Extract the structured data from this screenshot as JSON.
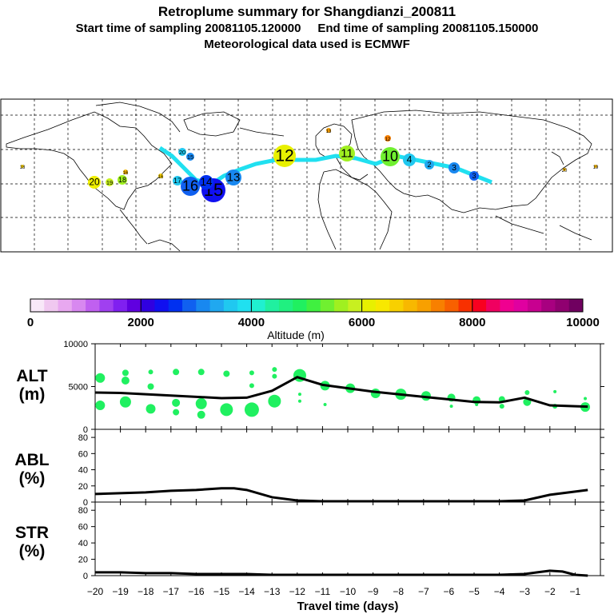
{
  "title": "Retroplume summary for Shangdianzi_200811",
  "subtitle_start": "Start time of sampling 20081105.120000",
  "subtitle_end": "End time of sampling 20081105.150000",
  "subtitle_met": "Meteorological data used is ECMWF",
  "colorbar": {
    "label": "Altitude (m)",
    "ticks": [
      "0",
      "2000",
      "4000",
      "6000",
      "8000",
      "10000"
    ],
    "colors": [
      "#f8e8f8",
      "#f0c8f0",
      "#e8a8f0",
      "#d888f0",
      "#c060f0",
      "#a040f0",
      "#8020f0",
      "#6000e0",
      "#3000e0",
      "#1010f0",
      "#0030f0",
      "#1060f0",
      "#1888f0",
      "#20a8f0",
      "#20c8f0",
      "#20e0f0",
      "#20f0d0",
      "#20f0a0",
      "#20f080",
      "#20f060",
      "#40f040",
      "#70f030",
      "#a0f020",
      "#c8f020",
      "#e8f000",
      "#f8e800",
      "#f8d000",
      "#f8b800",
      "#f8a000",
      "#f88000",
      "#f86000",
      "#f83000",
      "#f80020",
      "#f00060",
      "#f00090",
      "#e000a0",
      "#c80090",
      "#a80080",
      "#900070",
      "#700060"
    ]
  },
  "chart_data": [
    {
      "type": "line",
      "panel": "ALT",
      "ylabel_line1": "ALT",
      "ylabel_line2": "(m)",
      "ylim": [
        0,
        10000
      ],
      "yticks": [
        "10000",
        "5000",
        "0"
      ],
      "x": [
        -20,
        -19,
        -18,
        -17,
        -16,
        -15,
        -14,
        -13,
        -12,
        -11,
        -10,
        -9,
        -8,
        -7,
        -6,
        -5,
        -4,
        -3,
        -2,
        -1,
        -0.5
      ],
      "values": [
        4300,
        4250,
        4100,
        3950,
        3800,
        3650,
        3700,
        4500,
        6100,
        5200,
        4800,
        4400,
        4100,
        3800,
        3500,
        3200,
        3150,
        3700,
        2800,
        2700,
        2650
      ],
      "scatter": [
        {
          "x": -19.8,
          "y": 6000,
          "r": 6
        },
        {
          "x": -19.8,
          "y": 2800,
          "r": 6
        },
        {
          "x": -18.8,
          "y": 6600,
          "r": 4
        },
        {
          "x": -18.8,
          "y": 5700,
          "r": 5
        },
        {
          "x": -18.8,
          "y": 3200,
          "r": 7
        },
        {
          "x": -17.8,
          "y": 6700,
          "r": 3
        },
        {
          "x": -17.8,
          "y": 5000,
          "r": 4
        },
        {
          "x": -17.8,
          "y": 2400,
          "r": 6
        },
        {
          "x": -16.8,
          "y": 6700,
          "r": 4
        },
        {
          "x": -16.8,
          "y": 3100,
          "r": 5
        },
        {
          "x": -16.8,
          "y": 2000,
          "r": 4
        },
        {
          "x": -15.8,
          "y": 6700,
          "r": 4
        },
        {
          "x": -15.8,
          "y": 3000,
          "r": 7
        },
        {
          "x": -15.8,
          "y": 1700,
          "r": 5
        },
        {
          "x": -14.8,
          "y": 6500,
          "r": 4
        },
        {
          "x": -14.8,
          "y": 2300,
          "r": 8
        },
        {
          "x": -13.8,
          "y": 6600,
          "r": 3
        },
        {
          "x": -13.8,
          "y": 5100,
          "r": 3
        },
        {
          "x": -13.8,
          "y": 2300,
          "r": 9
        },
        {
          "x": -12.9,
          "y": 7000,
          "r": 3
        },
        {
          "x": -12.9,
          "y": 6200,
          "r": 3
        },
        {
          "x": -12.9,
          "y": 3300,
          "r": 8
        },
        {
          "x": -11.9,
          "y": 6300,
          "r": 8
        },
        {
          "x": -11.9,
          "y": 4100,
          "r": 2
        },
        {
          "x": -11.9,
          "y": 3300,
          "r": 2
        },
        {
          "x": -10.9,
          "y": 5100,
          "r": 6
        },
        {
          "x": -10.9,
          "y": 2900,
          "r": 2
        },
        {
          "x": -9.9,
          "y": 4800,
          "r": 6
        },
        {
          "x": -8.9,
          "y": 4200,
          "r": 6
        },
        {
          "x": -7.9,
          "y": 4100,
          "r": 7
        },
        {
          "x": -6.9,
          "y": 3900,
          "r": 6
        },
        {
          "x": -5.9,
          "y": 3700,
          "r": 5
        },
        {
          "x": -5.9,
          "y": 2700,
          "r": 2
        },
        {
          "x": -4.9,
          "y": 3400,
          "r": 5
        },
        {
          "x": -4.9,
          "y": 2900,
          "r": 2
        },
        {
          "x": -3.9,
          "y": 3500,
          "r": 4
        },
        {
          "x": -3.9,
          "y": 2700,
          "r": 3
        },
        {
          "x": -2.9,
          "y": 4300,
          "r": 3
        },
        {
          "x": -2.9,
          "y": 3200,
          "r": 5
        },
        {
          "x": -1.8,
          "y": 4400,
          "r": 2
        },
        {
          "x": -1.8,
          "y": 2700,
          "r": 3
        },
        {
          "x": -0.6,
          "y": 2600,
          "r": 6
        },
        {
          "x": -0.6,
          "y": 3600,
          "r": 2
        }
      ]
    },
    {
      "type": "line",
      "panel": "ABL",
      "ylabel_line1": "ABL",
      "ylabel_line2": "(%)",
      "ylim": [
        0,
        90
      ],
      "yticks": [
        "80",
        "60",
        "40",
        "20",
        "0"
      ],
      "x": [
        -20,
        -19,
        -18,
        -17,
        -16,
        -15,
        -14.5,
        -14,
        -13,
        -12,
        -11,
        -10,
        -9,
        -8,
        -7,
        -6,
        -5,
        -4,
        -3,
        -2,
        -1,
        -0.5
      ],
      "values": [
        10,
        11,
        12,
        14,
        15,
        17,
        17,
        15,
        6,
        2,
        1,
        1,
        1,
        1,
        1,
        1,
        1,
        1,
        2,
        9,
        13,
        15
      ]
    },
    {
      "type": "line",
      "panel": "STR",
      "ylabel_line1": "STR",
      "ylabel_line2": "(%)",
      "ylim": [
        0,
        90
      ],
      "yticks": [
        "80",
        "60",
        "40",
        "20",
        "0"
      ],
      "x": [
        -20,
        -19,
        -18,
        -17,
        -16,
        -15,
        -14,
        -13,
        -12,
        -11,
        -10,
        -9,
        -8,
        -7,
        -6,
        -5,
        -4,
        -3,
        -2.5,
        -2,
        -1.5,
        -1,
        -0.5
      ],
      "values": [
        4,
        4,
        3,
        3,
        2,
        2,
        2,
        1,
        1,
        1,
        1,
        1,
        1,
        1,
        1,
        1,
        1,
        2,
        4,
        6,
        5,
        1,
        0
      ],
      "xlabel": "Travel time (days)",
      "xticks": [
        "−20",
        "−19",
        "−18",
        "−17",
        "−16",
        "−15",
        "−14",
        "−13",
        "−12",
        "−11",
        "−10",
        "−9",
        "−8",
        "−7",
        "−6",
        "−5",
        "−4",
        "−3",
        "−2",
        "−1"
      ],
      "xlim": [
        -20,
        0
      ]
    }
  ],
  "map": {
    "labels": [
      {
        "text": "20",
        "color": "#f0f000",
        "size": 8
      },
      {
        "text": "19",
        "color": "#c8f020",
        "size": 5
      },
      {
        "text": "18",
        "color": "#a0f020",
        "size": 6
      },
      {
        "text": "16",
        "color": "#f8b800",
        "size": 3
      },
      {
        "text": "17",
        "color": "#20c8f0",
        "size": 6
      },
      {
        "text": "16",
        "color": "#1060f0",
        "size": 12
      },
      {
        "text": "15",
        "color": "#1010f0",
        "size": 15
      },
      {
        "text": "14",
        "color": "#0030f0",
        "size": 9
      },
      {
        "text": "13",
        "color": "#1888f0",
        "size": 10
      },
      {
        "text": "20",
        "color": "#20c8f0",
        "size": 5
      },
      {
        "text": "15",
        "color": "#1888f0",
        "size": 5
      },
      {
        "text": "12",
        "color": "#e8f000",
        "size": 14
      },
      {
        "text": "11",
        "color": "#a0f020",
        "size": 10
      },
      {
        "text": "10",
        "color": "#70f030",
        "size": 12
      },
      {
        "text": "13",
        "color": "#f8a000",
        "size": 3
      },
      {
        "text": "12",
        "color": "#f88000",
        "size": 4
      },
      {
        "text": "3",
        "color": "#1060f0",
        "size": 6
      },
      {
        "text": "3",
        "color": "#1888f0",
        "size": 7
      },
      {
        "text": "16",
        "color": "#f8d000",
        "size": 3
      },
      {
        "text": "18",
        "color": "#f8d000",
        "size": 2
      },
      {
        "text": "20",
        "color": "#f8b800",
        "size": 2
      },
      {
        "text": "19",
        "color": "#f8b800",
        "size": 2
      },
      {
        "text": "4",
        "color": "#20c8f0",
        "size": 8
      },
      {
        "text": "2",
        "color": "#20a8f0",
        "size": 6
      }
    ]
  }
}
